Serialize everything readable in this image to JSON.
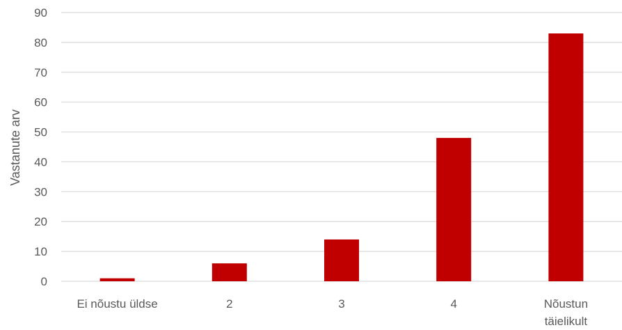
{
  "chart_data": {
    "type": "bar",
    "title": "",
    "xlabel": "",
    "ylabel": "Vastanute arv",
    "categories": [
      "Ei nõustu üldse",
      "2",
      "3",
      "4",
      "Nõustun täielikult"
    ],
    "category_lines": [
      [
        "Ei nõustu üldse"
      ],
      [
        "2"
      ],
      [
        "3"
      ],
      [
        "4"
      ],
      [
        "Nõustun",
        "täielikult"
      ]
    ],
    "values": [
      1,
      6,
      14,
      48,
      83
    ],
    "ylim": [
      0,
      90
    ],
    "yticks": [
      0,
      10,
      20,
      30,
      40,
      50,
      60,
      70,
      80,
      90
    ],
    "grid": true,
    "legend": "none",
    "bar_color": "#c00000",
    "grid_color": "#d9d9d9",
    "text_color": "#595959"
  }
}
